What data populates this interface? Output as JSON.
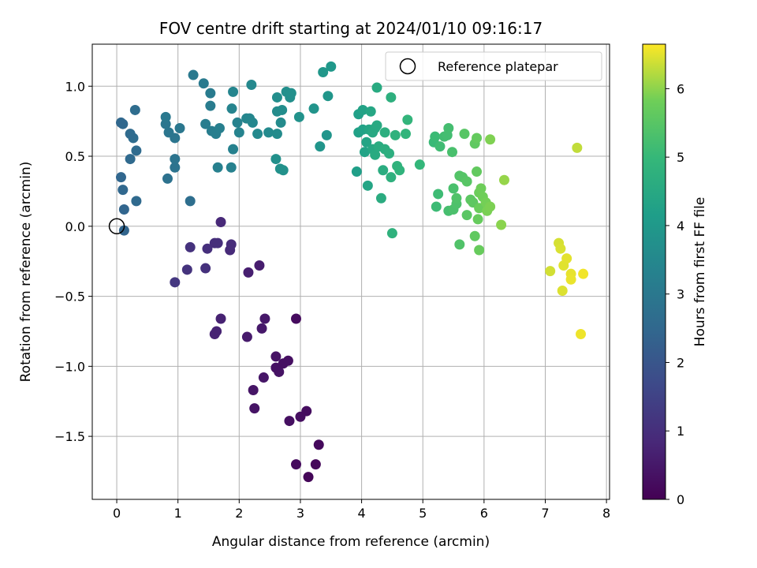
{
  "chart_data": {
    "type": "scatter",
    "title": "FOV centre drift starting at 2024/01/10 09:16:17",
    "xlabel": "Angular distance from reference (arcmin)",
    "ylabel": "Rotation from reference (arcmin)",
    "xlim": [
      -0.4,
      8.05
    ],
    "ylim": [
      -1.95,
      1.3
    ],
    "xticks": [
      0,
      1,
      2,
      3,
      4,
      5,
      6,
      7,
      8
    ],
    "yticks": [
      -1.5,
      -1.0,
      -0.5,
      0.0,
      0.5,
      1.0
    ],
    "ytick_labels": [
      "−1.5",
      "−1.0",
      "−0.5",
      "0.0",
      "0.5",
      "1.0"
    ],
    "grid": true,
    "legend": {
      "position": "top-right",
      "entries": [
        "Reference platepar"
      ]
    },
    "reference_point": {
      "x": 0,
      "y": 0,
      "label": "Reference platepar"
    },
    "colorbar": {
      "label": "Hours from first FF file",
      "colormap": "viridis",
      "range": [
        0,
        6.65
      ],
      "ticks": [
        0,
        1,
        2,
        3,
        4,
        5,
        6
      ]
    },
    "points": [
      {
        "x": 3.13,
        "y": -1.79,
        "c": 0.1
      },
      {
        "x": 3.25,
        "y": -1.7,
        "c": 0.15
      },
      {
        "x": 2.93,
        "y": -1.7,
        "c": 0.2
      },
      {
        "x": 3.3,
        "y": -1.56,
        "c": 0.18
      },
      {
        "x": 2.82,
        "y": -1.39,
        "c": 0.3
      },
      {
        "x": 3.0,
        "y": -1.36,
        "c": 0.28
      },
      {
        "x": 3.1,
        "y": -1.32,
        "c": 0.25
      },
      {
        "x": 2.25,
        "y": -1.3,
        "c": 0.4
      },
      {
        "x": 2.23,
        "y": -1.17,
        "c": 0.42
      },
      {
        "x": 2.4,
        "y": -1.08,
        "c": 0.45
      },
      {
        "x": 2.65,
        "y": -1.04,
        "c": 0.38
      },
      {
        "x": 2.6,
        "y": -1.01,
        "c": 0.35
      },
      {
        "x": 2.72,
        "y": -0.98,
        "c": 0.33
      },
      {
        "x": 2.8,
        "y": -0.96,
        "c": 0.32
      },
      {
        "x": 2.6,
        "y": -0.93,
        "c": 0.36
      },
      {
        "x": 2.93,
        "y": -0.66,
        "c": 0.22
      },
      {
        "x": 2.13,
        "y": -0.79,
        "c": 0.55
      },
      {
        "x": 2.37,
        "y": -0.73,
        "c": 0.5
      },
      {
        "x": 2.42,
        "y": -0.66,
        "c": 0.48
      },
      {
        "x": 1.6,
        "y": -0.77,
        "c": 0.75
      },
      {
        "x": 1.63,
        "y": -0.75,
        "c": 0.72
      },
      {
        "x": 1.7,
        "y": -0.66,
        "c": 0.7
      },
      {
        "x": 2.33,
        "y": -0.28,
        "c": 0.6
      },
      {
        "x": 2.15,
        "y": -0.33,
        "c": 0.65
      },
      {
        "x": 0.95,
        "y": -0.4,
        "c": 1.2
      },
      {
        "x": 1.15,
        "y": -0.31,
        "c": 1.1
      },
      {
        "x": 1.45,
        "y": -0.3,
        "c": 1.05
      },
      {
        "x": 1.85,
        "y": -0.17,
        "c": 0.9
      },
      {
        "x": 1.87,
        "y": -0.13,
        "c": 0.95
      },
      {
        "x": 1.6,
        "y": -0.12,
        "c": 0.98
      },
      {
        "x": 1.65,
        "y": -0.12,
        "c": 1.0
      },
      {
        "x": 1.48,
        "y": -0.16,
        "c": 1.02
      },
      {
        "x": 1.2,
        "y": -0.15,
        "c": 1.08
      },
      {
        "x": 1.7,
        "y": 0.03,
        "c": 0.85
      },
      {
        "x": 0.12,
        "y": -0.03,
        "c": 2.4
      },
      {
        "x": 0.12,
        "y": 0.12,
        "c": 2.45
      },
      {
        "x": 0.32,
        "y": 0.18,
        "c": 2.55
      },
      {
        "x": 0.1,
        "y": 0.26,
        "c": 2.5
      },
      {
        "x": 0.07,
        "y": 0.35,
        "c": 2.48
      },
      {
        "x": 0.22,
        "y": 0.48,
        "c": 2.55
      },
      {
        "x": 0.32,
        "y": 0.54,
        "c": 2.6
      },
      {
        "x": 0.27,
        "y": 0.63,
        "c": 2.62
      },
      {
        "x": 0.22,
        "y": 0.66,
        "c": 2.58
      },
      {
        "x": 0.1,
        "y": 0.73,
        "c": 2.52
      },
      {
        "x": 0.07,
        "y": 0.74,
        "c": 2.5
      },
      {
        "x": 0.3,
        "y": 0.83,
        "c": 2.65
      },
      {
        "x": 0.83,
        "y": 0.34,
        "c": 2.8
      },
      {
        "x": 0.95,
        "y": 0.42,
        "c": 2.85
      },
      {
        "x": 0.95,
        "y": 0.48,
        "c": 2.88
      },
      {
        "x": 0.95,
        "y": 0.63,
        "c": 2.9
      },
      {
        "x": 0.85,
        "y": 0.67,
        "c": 2.92
      },
      {
        "x": 0.8,
        "y": 0.73,
        "c": 2.95
      },
      {
        "x": 1.03,
        "y": 0.7,
        "c": 2.98
      },
      {
        "x": 0.8,
        "y": 0.78,
        "c": 3.0
      },
      {
        "x": 1.2,
        "y": 0.18,
        "c": 2.7
      },
      {
        "x": 1.25,
        "y": 1.08,
        "c": 3.05
      },
      {
        "x": 1.42,
        "y": 1.02,
        "c": 3.08
      },
      {
        "x": 1.53,
        "y": 0.95,
        "c": 3.1
      },
      {
        "x": 1.53,
        "y": 0.86,
        "c": 3.12
      },
      {
        "x": 1.45,
        "y": 0.73,
        "c": 3.15
      },
      {
        "x": 1.55,
        "y": 0.68,
        "c": 3.18
      },
      {
        "x": 1.62,
        "y": 0.66,
        "c": 3.2
      },
      {
        "x": 1.68,
        "y": 0.7,
        "c": 3.22
      },
      {
        "x": 1.65,
        "y": 0.42,
        "c": 3.25
      },
      {
        "x": 1.87,
        "y": 0.42,
        "c": 3.28
      },
      {
        "x": 1.9,
        "y": 0.55,
        "c": 3.3
      },
      {
        "x": 1.97,
        "y": 0.74,
        "c": 3.32
      },
      {
        "x": 2.0,
        "y": 0.67,
        "c": 3.35
      },
      {
        "x": 1.88,
        "y": 0.84,
        "c": 3.38
      },
      {
        "x": 1.9,
        "y": 0.96,
        "c": 3.4
      },
      {
        "x": 2.12,
        "y": 0.77,
        "c": 3.42
      },
      {
        "x": 2.17,
        "y": 0.77,
        "c": 3.45
      },
      {
        "x": 2.22,
        "y": 0.74,
        "c": 3.48
      },
      {
        "x": 2.2,
        "y": 1.01,
        "c": 3.5
      },
      {
        "x": 2.3,
        "y": 0.66,
        "c": 3.52
      },
      {
        "x": 2.48,
        "y": 0.67,
        "c": 3.55
      },
      {
        "x": 2.62,
        "y": 0.66,
        "c": 3.58
      },
      {
        "x": 2.68,
        "y": 0.74,
        "c": 3.6
      },
      {
        "x": 2.62,
        "y": 0.82,
        "c": 3.62
      },
      {
        "x": 2.7,
        "y": 0.83,
        "c": 3.65
      },
      {
        "x": 2.62,
        "y": 0.92,
        "c": 3.68
      },
      {
        "x": 2.77,
        "y": 0.96,
        "c": 3.7
      },
      {
        "x": 2.83,
        "y": 0.92,
        "c": 3.72
      },
      {
        "x": 2.85,
        "y": 0.95,
        "c": 3.73
      },
      {
        "x": 2.6,
        "y": 0.48,
        "c": 3.75
      },
      {
        "x": 2.67,
        "y": 0.41,
        "c": 3.76
      },
      {
        "x": 2.72,
        "y": 0.4,
        "c": 3.78
      },
      {
        "x": 2.98,
        "y": 0.78,
        "c": 3.8
      },
      {
        "x": 3.22,
        "y": 0.84,
        "c": 3.85
      },
      {
        "x": 3.32,
        "y": 0.57,
        "c": 3.88
      },
      {
        "x": 3.43,
        "y": 0.65,
        "c": 3.9
      },
      {
        "x": 3.45,
        "y": 0.93,
        "c": 3.92
      },
      {
        "x": 3.37,
        "y": 1.1,
        "c": 3.95
      },
      {
        "x": 3.5,
        "y": 1.14,
        "c": 3.98
      },
      {
        "x": 3.92,
        "y": 0.39,
        "c": 4.2
      },
      {
        "x": 3.95,
        "y": 0.67,
        "c": 4.25
      },
      {
        "x": 3.95,
        "y": 0.8,
        "c": 4.22
      },
      {
        "x": 4.02,
        "y": 0.69,
        "c": 4.28
      },
      {
        "x": 4.02,
        "y": 0.83,
        "c": 4.3
      },
      {
        "x": 4.05,
        "y": 0.53,
        "c": 4.32
      },
      {
        "x": 4.08,
        "y": 0.6,
        "c": 4.35
      },
      {
        "x": 4.1,
        "y": 0.29,
        "c": 4.38
      },
      {
        "x": 4.12,
        "y": 0.69,
        "c": 4.4
      },
      {
        "x": 4.15,
        "y": 0.82,
        "c": 4.42
      },
      {
        "x": 4.18,
        "y": 0.55,
        "c": 4.45
      },
      {
        "x": 4.18,
        "y": 0.67,
        "c": 4.48
      },
      {
        "x": 4.22,
        "y": 0.7,
        "c": 4.5
      },
      {
        "x": 4.25,
        "y": 0.72,
        "c": 4.52
      },
      {
        "x": 4.22,
        "y": 0.51,
        "c": 4.55
      },
      {
        "x": 4.28,
        "y": 0.57,
        "c": 4.58
      },
      {
        "x": 4.25,
        "y": 0.99,
        "c": 4.55
      },
      {
        "x": 4.32,
        "y": 0.2,
        "c": 4.6
      },
      {
        "x": 4.35,
        "y": 0.4,
        "c": 4.62
      },
      {
        "x": 4.38,
        "y": 0.55,
        "c": 4.65
      },
      {
        "x": 4.38,
        "y": 0.67,
        "c": 4.68
      },
      {
        "x": 4.45,
        "y": 0.52,
        "c": 4.7
      },
      {
        "x": 4.48,
        "y": 0.92,
        "c": 4.72
      },
      {
        "x": 4.48,
        "y": 0.35,
        "c": 4.75
      },
      {
        "x": 4.5,
        "y": -0.05,
        "c": 4.78
      },
      {
        "x": 4.55,
        "y": 0.65,
        "c": 4.8
      },
      {
        "x": 4.58,
        "y": 0.43,
        "c": 4.82
      },
      {
        "x": 4.62,
        "y": 0.4,
        "c": 4.85
      },
      {
        "x": 4.72,
        "y": 0.66,
        "c": 4.88
      },
      {
        "x": 4.75,
        "y": 0.76,
        "c": 4.9
      },
      {
        "x": 4.95,
        "y": 0.44,
        "c": 4.95
      },
      {
        "x": 5.18,
        "y": 0.6,
        "c": 5.05
      },
      {
        "x": 5.2,
        "y": 0.64,
        "c": 5.08
      },
      {
        "x": 5.22,
        "y": 0.14,
        "c": 5.1
      },
      {
        "x": 5.25,
        "y": 0.23,
        "c": 5.12
      },
      {
        "x": 5.28,
        "y": 0.57,
        "c": 5.15
      },
      {
        "x": 5.35,
        "y": 0.64,
        "c": 5.18
      },
      {
        "x": 5.4,
        "y": 0.65,
        "c": 5.2
      },
      {
        "x": 5.42,
        "y": 0.7,
        "c": 5.22
      },
      {
        "x": 5.42,
        "y": 0.11,
        "c": 5.25
      },
      {
        "x": 5.48,
        "y": 0.53,
        "c": 5.28
      },
      {
        "x": 5.5,
        "y": 0.27,
        "c": 5.3
      },
      {
        "x": 5.5,
        "y": 0.12,
        "c": 5.32
      },
      {
        "x": 5.55,
        "y": 0.16,
        "c": 5.35
      },
      {
        "x": 5.55,
        "y": 0.2,
        "c": 5.38
      },
      {
        "x": 5.6,
        "y": -0.13,
        "c": 5.4
      },
      {
        "x": 5.6,
        "y": 0.36,
        "c": 5.42
      },
      {
        "x": 5.65,
        "y": 0.35,
        "c": 5.45
      },
      {
        "x": 5.68,
        "y": 0.66,
        "c": 5.48
      },
      {
        "x": 5.72,
        "y": 0.32,
        "c": 5.5
      },
      {
        "x": 5.72,
        "y": 0.08,
        "c": 5.52
      },
      {
        "x": 5.78,
        "y": 0.19,
        "c": 5.55
      },
      {
        "x": 5.82,
        "y": 0.17,
        "c": 5.58
      },
      {
        "x": 5.85,
        "y": 0.59,
        "c": 5.6
      },
      {
        "x": 5.85,
        "y": -0.07,
        "c": 5.62
      },
      {
        "x": 5.88,
        "y": 0.39,
        "c": 5.65
      },
      {
        "x": 5.88,
        "y": 0.63,
        "c": 5.68
      },
      {
        "x": 5.9,
        "y": 0.05,
        "c": 5.7
      },
      {
        "x": 5.92,
        "y": -0.17,
        "c": 5.72
      },
      {
        "x": 5.92,
        "y": 0.13,
        "c": 5.75
      },
      {
        "x": 5.92,
        "y": 0.24,
        "c": 5.78
      },
      {
        "x": 5.95,
        "y": 0.27,
        "c": 5.8
      },
      {
        "x": 5.98,
        "y": 0.21,
        "c": 5.82
      },
      {
        "x": 6.03,
        "y": 0.17,
        "c": 5.85
      },
      {
        "x": 6.05,
        "y": 0.11,
        "c": 5.88
      },
      {
        "x": 6.1,
        "y": 0.14,
        "c": 5.9
      },
      {
        "x": 6.1,
        "y": 0.62,
        "c": 5.92
      },
      {
        "x": 6.28,
        "y": 0.01,
        "c": 5.98
      },
      {
        "x": 6.33,
        "y": 0.33,
        "c": 6.05
      },
      {
        "x": 7.52,
        "y": 0.56,
        "c": 6.3
      },
      {
        "x": 7.08,
        "y": -0.32,
        "c": 6.4
      },
      {
        "x": 7.22,
        "y": -0.12,
        "c": 6.42
      },
      {
        "x": 7.25,
        "y": -0.16,
        "c": 6.44
      },
      {
        "x": 7.28,
        "y": -0.46,
        "c": 6.46
      },
      {
        "x": 7.3,
        "y": -0.28,
        "c": 6.48
      },
      {
        "x": 7.35,
        "y": -0.23,
        "c": 6.5
      },
      {
        "x": 7.42,
        "y": -0.34,
        "c": 6.52
      },
      {
        "x": 7.42,
        "y": -0.38,
        "c": 6.54
      },
      {
        "x": 7.58,
        "y": -0.77,
        "c": 6.56
      },
      {
        "x": 7.62,
        "y": -0.34,
        "c": 6.58
      }
    ]
  }
}
